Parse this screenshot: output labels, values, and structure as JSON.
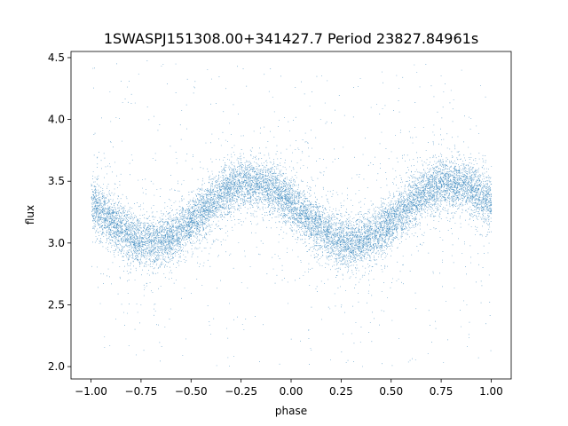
{
  "chart_data": {
    "type": "scatter",
    "title": "1SWASPJ151308.00+341427.7 Period 23827.84961s",
    "xlabel": "phase",
    "ylabel": "flux",
    "xlim": [
      -1.1,
      1.1
    ],
    "ylim": [
      1.9,
      4.55
    ],
    "xticks": [
      -1.0,
      -0.75,
      -0.5,
      -0.25,
      0.0,
      0.25,
      0.5,
      0.75,
      1.0
    ],
    "xtick_labels": [
      "−1.00",
      "−0.75",
      "−0.50",
      "−0.25",
      "0.00",
      "0.25",
      "0.50",
      "0.75",
      "1.00"
    ],
    "yticks": [
      2.0,
      2.5,
      3.0,
      3.5,
      4.0,
      4.5
    ],
    "ytick_labels": [
      "2.0",
      "2.5",
      "3.0",
      "3.5",
      "4.0",
      "4.5"
    ],
    "grid": false,
    "marker_color": "#1f77b4",
    "phase_range": [
      -1.0,
      1.0
    ],
    "signal": {
      "model": "sinusoid",
      "mean_flux": 3.25,
      "amplitude": 0.24,
      "peak_phase": -0.2,
      "period_in_phase": 1.0,
      "core_scatter": 0.1,
      "outlier_flux_range": [
        2.0,
        4.5
      ]
    }
  }
}
